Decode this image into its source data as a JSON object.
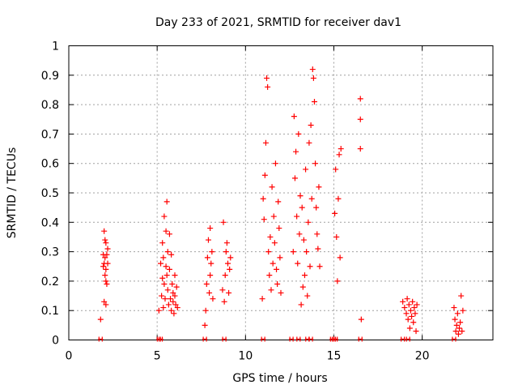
{
  "chart_data": {
    "type": "scatter",
    "title": "Day 233 of 2021, SRMTID for receiver dav1",
    "xlabel": "GPS time / hours",
    "ylabel": "SRMTID / TECUs",
    "xlim": [
      0,
      24
    ],
    "ylim": [
      0,
      1
    ],
    "xticks": [
      0,
      5,
      10,
      15,
      20
    ],
    "yticks": [
      0,
      0.1,
      0.2,
      0.3,
      0.4,
      0.5,
      0.6,
      0.7,
      0.8,
      0.9,
      1
    ],
    "grid": true,
    "marker": "plus",
    "color": "#ff0000",
    "series": [
      {
        "name": "dav1",
        "x": [
          1.8,
          1.95,
          1.95,
          2.0,
          2.0,
          2.0,
          2.05,
          2.05,
          2.05,
          2.1,
          2.1,
          2.1,
          2.1,
          2.15,
          2.15,
          2.2,
          2.2,
          5.1,
          5.2,
          5.25,
          5.3,
          5.3,
          5.35,
          5.35,
          5.4,
          5.4,
          5.45,
          5.5,
          5.5,
          5.55,
          5.55,
          5.6,
          5.6,
          5.65,
          5.7,
          5.7,
          5.75,
          5.8,
          5.8,
          5.85,
          5.9,
          5.9,
          5.95,
          6.0,
          6.0,
          6.05,
          6.1,
          6.15,
          7.7,
          7.75,
          7.8,
          7.85,
          7.9,
          7.95,
          8.0,
          8.0,
          8.05,
          8.1,
          8.15,
          8.7,
          8.75,
          8.8,
          8.85,
          8.9,
          8.95,
          9.0,
          9.05,
          9.1,
          9.15,
          10.95,
          11.0,
          11.05,
          11.1,
          11.15,
          11.2,
          11.25,
          11.3,
          11.35,
          11.4,
          11.45,
          11.5,
          11.55,
          11.6,
          11.65,
          11.7,
          11.75,
          11.8,
          11.85,
          11.9,
          11.95,
          12.0,
          12.7,
          12.75,
          12.8,
          12.85,
          12.9,
          12.95,
          13.0,
          13.05,
          13.1,
          13.15,
          13.2,
          13.25,
          13.3,
          13.35,
          13.4,
          13.45,
          13.5,
          13.55,
          13.6,
          13.65,
          13.7,
          13.75,
          13.8,
          13.85,
          13.9,
          13.95,
          14.0,
          14.05,
          14.1,
          14.15,
          14.2,
          15.05,
          15.1,
          15.15,
          15.2,
          15.25,
          15.3,
          15.35,
          15.4,
          16.5,
          16.5,
          16.5,
          16.55,
          18.9,
          19.0,
          19.1,
          19.15,
          19.2,
          19.25,
          19.3,
          19.35,
          19.4,
          19.45,
          19.5,
          19.55,
          19.6,
          19.65,
          19.7,
          21.8,
          21.85,
          21.9,
          21.95,
          22.0,
          22.05,
          22.1,
          22.15,
          22.2,
          22.25,
          22.3
        ],
        "y": [
          0.07,
          0.25,
          0.29,
          0.37,
          0.13,
          0.26,
          0.22,
          0.34,
          0.28,
          0.2,
          0.33,
          0.24,
          0.12,
          0.29,
          0.19,
          0.31,
          0.26,
          0.1,
          0.26,
          0.15,
          0.33,
          0.21,
          0.11,
          0.28,
          0.19,
          0.42,
          0.14,
          0.25,
          0.37,
          0.47,
          0.22,
          0.3,
          0.17,
          0.12,
          0.36,
          0.24,
          0.14,
          0.29,
          0.1,
          0.19,
          0.16,
          0.13,
          0.09,
          0.22,
          0.15,
          0.12,
          0.18,
          0.11,
          0.05,
          0.1,
          0.19,
          0.28,
          0.34,
          0.16,
          0.38,
          0.22,
          0.26,
          0.3,
          0.14,
          0.17,
          0.4,
          0.13,
          0.22,
          0.3,
          0.33,
          0.26,
          0.16,
          0.24,
          0.28,
          0.14,
          0.48,
          0.41,
          0.56,
          0.67,
          0.89,
          0.86,
          0.3,
          0.22,
          0.35,
          0.17,
          0.52,
          0.26,
          0.42,
          0.33,
          0.6,
          0.24,
          0.19,
          0.47,
          0.38,
          0.28,
          0.16,
          0.3,
          0.76,
          0.55,
          0.64,
          0.42,
          0.26,
          0.7,
          0.36,
          0.49,
          0.12,
          0.45,
          0.18,
          0.34,
          0.22,
          0.58,
          0.3,
          0.15,
          0.4,
          0.67,
          0.25,
          0.73,
          0.48,
          0.92,
          0.89,
          0.81,
          0.6,
          0.45,
          0.36,
          0.31,
          0.52,
          0.25,
          0.43,
          0.58,
          0.35,
          0.2,
          0.48,
          0.63,
          0.28,
          0.65,
          0.82,
          0.75,
          0.65,
          0.07,
          0.13,
          0.11,
          0.09,
          0.14,
          0.07,
          0.12,
          0.04,
          0.1,
          0.08,
          0.13,
          0.06,
          0.11,
          0.09,
          0.03,
          0.12,
          0.11,
          0.07,
          0.03,
          0.05,
          0.09,
          0.02,
          0.04,
          0.06,
          0.15,
          0.03,
          0.1
        ],
        "zero_x": [
          1.8,
          5.1,
          5.2,
          7.7,
          8.8,
          11.0,
          12.6,
          13.0,
          13.5,
          13.7,
          14.9,
          15.0,
          15.1,
          16.5,
          18.9,
          19.2,
          21.8
        ]
      }
    ]
  }
}
